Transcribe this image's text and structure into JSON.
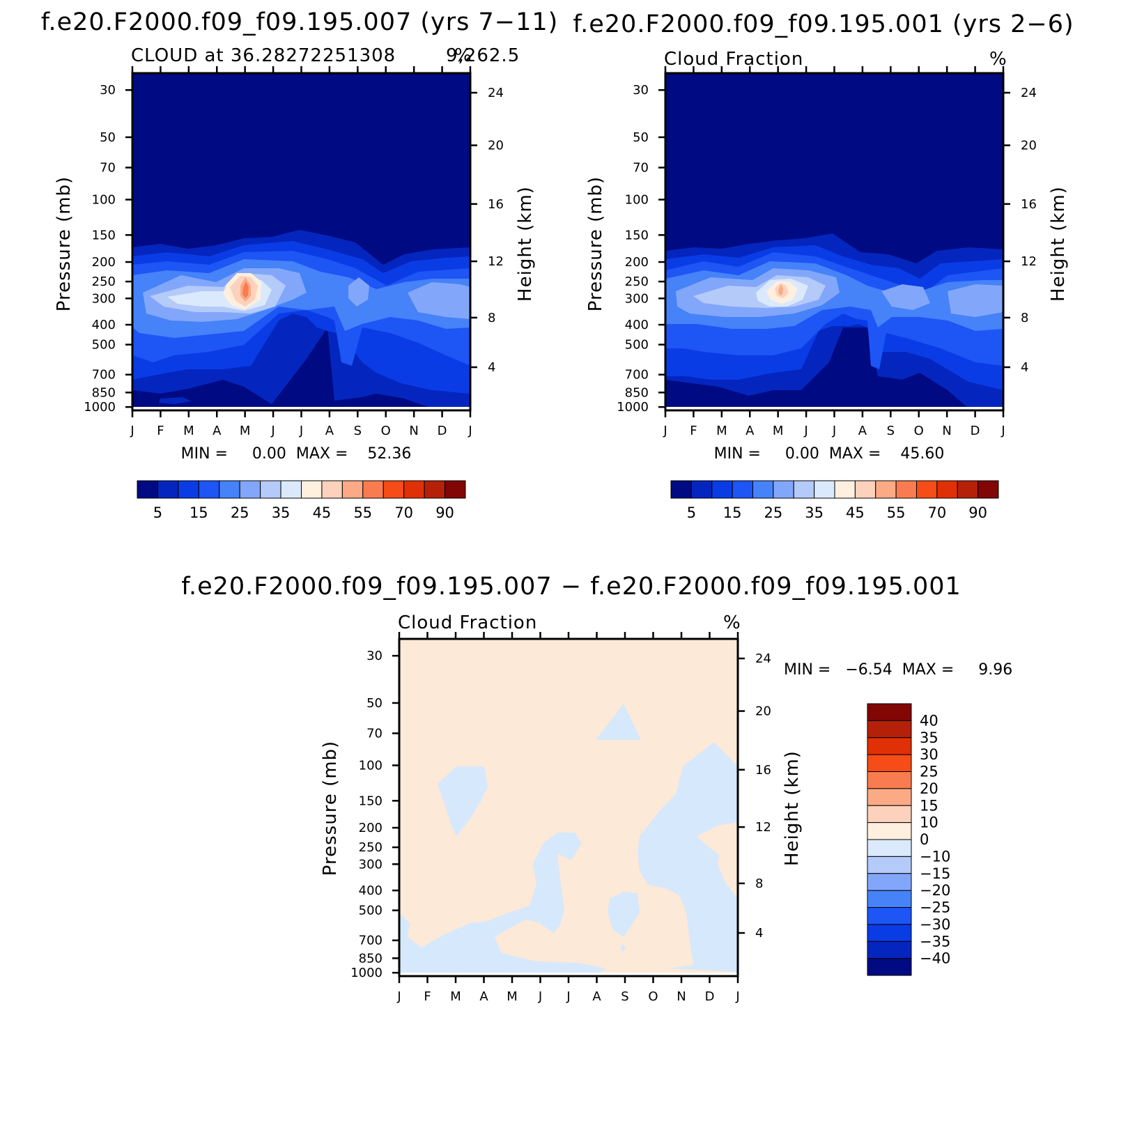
{
  "chart_data": [
    {
      "type": "heatmap",
      "id": "panel-case1",
      "title": "f.e20.F2000.f09_f09.195.007 (yrs 7−11)",
      "subtitle_left": "CLOUD at 36.28272251308",
      "subtitle_overlap": "9,262.5",
      "subtitle_units": "%",
      "ylabel": "Pressure (mb)",
      "ylabel_right": "Height (km)",
      "x_ticks": [
        "J",
        "F",
        "M",
        "A",
        "M",
        "J",
        "J",
        "A",
        "S",
        "O",
        "N",
        "D",
        "J"
      ],
      "y_ticks": [
        "30",
        "50",
        "70",
        "100",
        "150",
        "200",
        "250",
        "300",
        "400",
        "500",
        "700",
        "850",
        "1000"
      ],
      "y_ticks_right": [
        "24",
        "20",
        "16",
        "12",
        "8",
        "4"
      ],
      "min_max": "MIN =     0.00  MAX =    52.36",
      "colorbar_labels": [
        "5",
        "15",
        "25",
        "35",
        "45",
        "55",
        "70",
        "90"
      ],
      "stats": {
        "min": 0.0,
        "max": 52.36
      }
    },
    {
      "type": "heatmap",
      "id": "panel-case2",
      "title": "f.e20.F2000.f09_f09.195.001 (yrs 2−6)",
      "subtitle_left": "Cloud Fraction",
      "subtitle_units": "%",
      "ylabel": "Pressure (mb)",
      "ylabel_right": "Height (km)",
      "x_ticks": [
        "J",
        "F",
        "M",
        "A",
        "M",
        "J",
        "J",
        "A",
        "S",
        "O",
        "N",
        "D",
        "J"
      ],
      "y_ticks": [
        "30",
        "50",
        "70",
        "100",
        "150",
        "200",
        "250",
        "300",
        "400",
        "500",
        "700",
        "850",
        "1000"
      ],
      "y_ticks_right": [
        "24",
        "20",
        "16",
        "12",
        "8",
        "4"
      ],
      "min_max": "MIN =     0.00  MAX =    45.60",
      "colorbar_labels": [
        "5",
        "15",
        "25",
        "35",
        "45",
        "55",
        "70",
        "90"
      ],
      "stats": {
        "min": 0.0,
        "max": 45.6
      }
    },
    {
      "type": "heatmap",
      "id": "panel-diff",
      "title": "f.e20.F2000.f09_f09.195.007 − f.e20.F2000.f09_f09.195.001",
      "subtitle_left": "Cloud Fraction",
      "subtitle_units": "%",
      "ylabel": "Pressure (mb)",
      "ylabel_right": "Height (km)",
      "x_ticks": [
        "J",
        "F",
        "M",
        "A",
        "M",
        "J",
        "J",
        "A",
        "S",
        "O",
        "N",
        "D",
        "J"
      ],
      "y_ticks": [
        "30",
        "50",
        "70",
        "100",
        "150",
        "200",
        "250",
        "300",
        "400",
        "500",
        "700",
        "850",
        "1000"
      ],
      "y_ticks_right": [
        "24",
        "20",
        "16",
        "12",
        "8",
        "4"
      ],
      "min_max": "MIN =   −6.54  MAX =     9.96",
      "colorbar_labels": [
        "40",
        "35",
        "30",
        "25",
        "20",
        "15",
        "10",
        "0",
        "−10",
        "−15",
        "−20",
        "−25",
        "−30",
        "−35",
        "−40"
      ],
      "stats": {
        "min": -6.54,
        "max": 9.96
      }
    }
  ],
  "palette": {
    "seq": [
      "#000a82",
      "#0426be",
      "#0a3ce6",
      "#1e55f5",
      "#4682f8",
      "#82a7fa",
      "#b4caf9",
      "#dbe9fd",
      "#feefde",
      "#fcd2bd",
      "#fbaa85",
      "#f87c4f",
      "#f54c18",
      "#e03005",
      "#b42108",
      "#820603"
    ],
    "neg_light": "#d6e8fc",
    "pos_light": "#fde9d8"
  }
}
